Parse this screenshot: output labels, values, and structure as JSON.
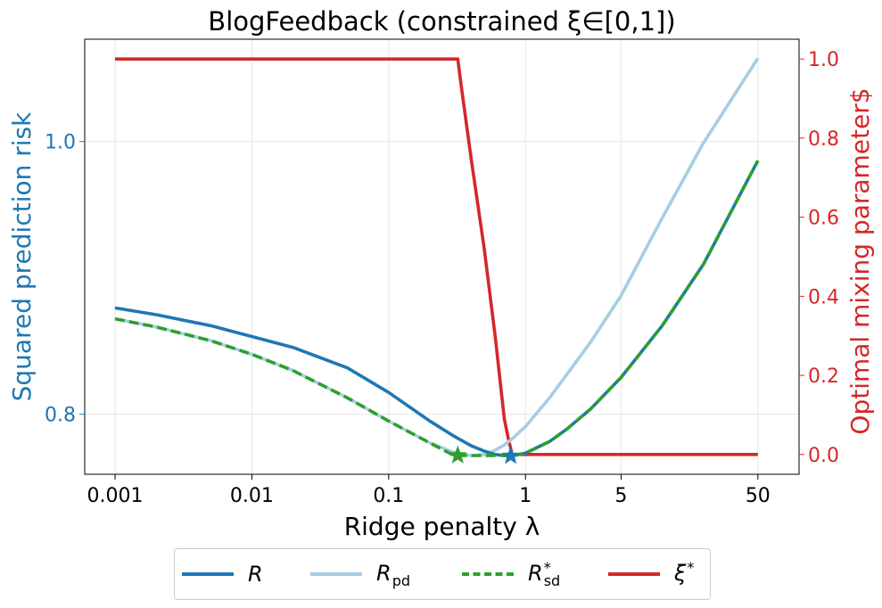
{
  "chart_data": {
    "type": "line",
    "title": "BlogFeedback (constrained ξ∈[0,1])",
    "xlabel": "Ridge penalty λ",
    "ylabel_left": "Squared prediction risk",
    "ylabel_right": "Optimal mixing parameter$",
    "x_scale": "log",
    "x_ticks": [
      0.001,
      0.01,
      0.1,
      1,
      5,
      50
    ],
    "x_tick_labels": [
      "0.001",
      "0.01",
      "0.1",
      "1",
      "5",
      "50"
    ],
    "y_left_ticks": [
      0.8,
      1.0
    ],
    "y_left_tick_labels": [
      "0.8",
      "1.0"
    ],
    "y_right_ticks": [
      0.0,
      0.2,
      0.4,
      0.6,
      0.8,
      1.0
    ],
    "y_right_tick_labels": [
      "0.0",
      "0.2",
      "0.4",
      "0.6",
      "0.8",
      "1.0"
    ],
    "ylim_left": [
      0.756,
      1.075
    ],
    "ylim_right": [
      -0.05,
      1.05
    ],
    "xlim": [
      0.0006,
      100
    ],
    "grid": true,
    "colors": {
      "R": "#1f77b4",
      "R_pd": "#a6cee3",
      "R_sd": "#2ca02c",
      "xi": "#d62728",
      "left_axis": "#1f77b4",
      "right_axis": "#d62728"
    },
    "series": [
      {
        "name": "R",
        "axis": "left",
        "style": "solid",
        "x": [
          0.001,
          0.002,
          0.005,
          0.01,
          0.02,
          0.05,
          0.1,
          0.2,
          0.3,
          0.4,
          0.5,
          0.6,
          0.7,
          0.8,
          1.0,
          1.5,
          2,
          3,
          5,
          10,
          20,
          50
        ],
        "y": [
          0.878,
          0.873,
          0.865,
          0.857,
          0.849,
          0.834,
          0.816,
          0.795,
          0.784,
          0.777,
          0.773,
          0.7705,
          0.7697,
          0.7695,
          0.7715,
          0.78,
          0.789,
          0.804,
          0.827,
          0.865,
          0.91,
          0.986
        ]
      },
      {
        "name": "R_pd",
        "axis": "left",
        "style": "solid",
        "x": [
          0.001,
          0.002,
          0.005,
          0.01,
          0.02,
          0.05,
          0.1,
          0.2,
          0.3,
          0.4,
          0.5,
          0.6,
          0.7,
          0.8,
          1.0,
          1.5,
          2,
          3,
          5,
          10,
          20,
          50
        ],
        "y": [
          0.87,
          0.864,
          0.854,
          0.844,
          0.832,
          0.812,
          0.795,
          0.779,
          0.772,
          0.7697,
          0.7705,
          0.7735,
          0.7775,
          0.782,
          0.791,
          0.812,
          0.829,
          0.853,
          0.887,
          0.944,
          0.999,
          1.061
        ]
      },
      {
        "name": "R*_sd",
        "axis": "left",
        "style": "dashed",
        "x": [
          0.001,
          0.002,
          0.005,
          0.01,
          0.02,
          0.05,
          0.1,
          0.2,
          0.3,
          0.4,
          0.5,
          0.6,
          0.7,
          0.8,
          1.0,
          1.5,
          2,
          3,
          5,
          10,
          20,
          50
        ],
        "y": [
          0.87,
          0.864,
          0.854,
          0.844,
          0.832,
          0.812,
          0.795,
          0.779,
          0.7698,
          0.7697,
          0.7697,
          0.7697,
          0.7697,
          0.7695,
          0.7715,
          0.78,
          0.789,
          0.804,
          0.827,
          0.865,
          0.91,
          0.986
        ]
      },
      {
        "name": "xi*",
        "axis": "right",
        "style": "solid",
        "x": [
          0.001,
          0.01,
          0.1,
          0.3,
          0.32,
          0.34,
          0.4,
          0.5,
          0.6,
          0.7,
          0.75,
          0.8,
          1,
          5,
          50
        ],
        "y": [
          1.0,
          1.0,
          1.0,
          1.0,
          1.0,
          0.93,
          0.75,
          0.52,
          0.3,
          0.09,
          0.04,
          0.0,
          0.0,
          0.0,
          0.0
        ]
      }
    ],
    "markers": [
      {
        "series": "R*_sd",
        "shape": "star",
        "x": 0.32,
        "y": 0.7698
      },
      {
        "series": "R",
        "shape": "star",
        "x": 0.78,
        "y": 0.7695
      }
    ],
    "legend": {
      "placement": "bottom-center",
      "entries": [
        {
          "label": "R",
          "sub": "",
          "sup": "",
          "color": "#1f77b4",
          "style": "solid"
        },
        {
          "label": "R",
          "sub": "pd",
          "sup": "",
          "color": "#a6cee3",
          "style": "solid"
        },
        {
          "label": "R",
          "sub": "sd",
          "sup": "*",
          "color": "#2ca02c",
          "style": "dashed"
        },
        {
          "label": "ξ",
          "sub": "",
          "sup": "*",
          "color": "#d62728",
          "style": "solid"
        }
      ]
    }
  }
}
